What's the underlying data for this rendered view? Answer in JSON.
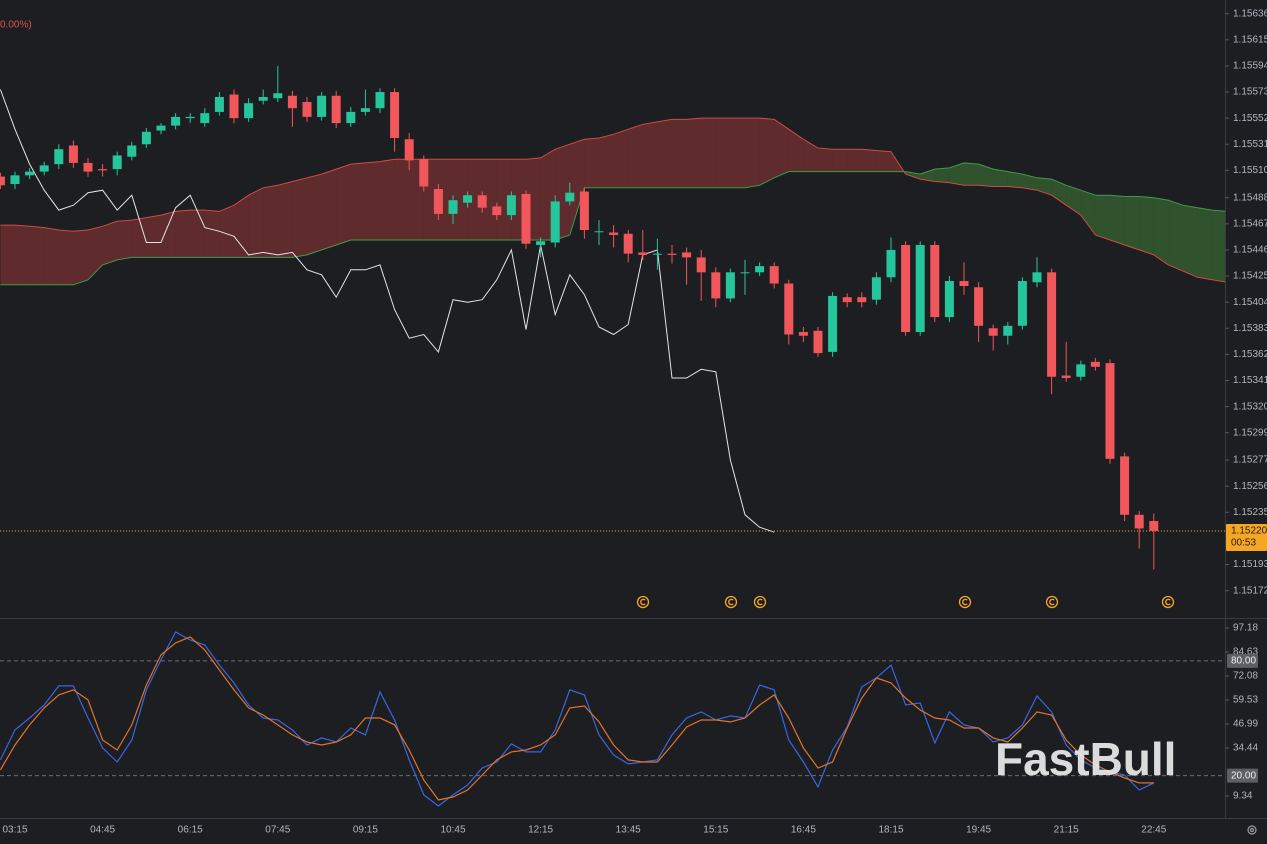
{
  "chart_data": [
    {
      "type": "candlestick",
      "annotation": "0.00%)",
      "watermark": "FastBull",
      "categories": [
        null,
        "03:15",
        null,
        null,
        null,
        null,
        null,
        "04:45",
        null,
        null,
        null,
        null,
        null,
        "06:15",
        null,
        null,
        null,
        null,
        null,
        "07:45",
        null,
        null,
        null,
        null,
        null,
        "09:15",
        null,
        null,
        null,
        null,
        null,
        "10:45",
        null,
        null,
        null,
        null,
        null,
        "12:15",
        null,
        null,
        null,
        null,
        null,
        "13:45",
        null,
        null,
        null,
        null,
        null,
        "15:15",
        null,
        null,
        null,
        null,
        null,
        "16:45",
        null,
        null,
        null,
        null,
        null,
        "18:15",
        null,
        null,
        null,
        null,
        null,
        "19:45",
        null,
        null,
        null,
        null,
        null,
        "21:15",
        null,
        null,
        null,
        null,
        null,
        "22:45",
        null,
        null,
        null,
        null,
        null
      ],
      "open": [
        1.15505,
        1.15499,
        1.15506,
        1.15509,
        1.15515,
        1.1553,
        1.15516,
        1.15511,
        1.15511,
        1.15521,
        1.15531,
        1.15542,
        1.15546,
        1.15552,
        1.15548,
        1.15557,
        1.15571,
        1.15552,
        1.15566,
        1.15568,
        1.1557,
        1.15565,
        1.15553,
        1.1557,
        1.15548,
        1.15557,
        1.1556,
        1.15573,
        1.15535,
        1.15519,
        1.15495,
        1.15475,
        1.15484,
        1.1549,
        1.15481,
        1.15474,
        1.15491,
        1.1545,
        1.15452,
        1.15485,
        1.15493,
        1.15461,
        1.1546,
        1.15459,
        1.15444,
        1.15443,
        1.15443,
        1.15444,
        1.1544,
        1.15428,
        1.15407,
        1.15428,
        1.15428,
        1.15433,
        1.15419,
        1.1538,
        1.15381,
        1.15364,
        1.15408,
        1.15408,
        1.15406,
        1.15424,
        1.1545,
        1.1538,
        1.1545,
        1.15392,
        1.15421,
        1.15416,
        1.15383,
        1.15377,
        1.15385,
        1.1542,
        1.15428,
        1.15345,
        1.15344,
        1.15356,
        1.15355,
        1.1528,
        1.15233,
        1.15228,
        null,
        null,
        null,
        null,
        null
      ],
      "high": [
        1.15508,
        1.15509,
        1.15512,
        1.15517,
        1.15531,
        1.15534,
        1.1552,
        1.15515,
        1.15525,
        1.15533,
        1.15544,
        1.15548,
        1.15556,
        1.15556,
        1.1556,
        1.15573,
        1.15575,
        1.15568,
        1.15575,
        1.15594,
        1.15574,
        1.15569,
        1.15573,
        1.15574,
        1.15561,
        1.15575,
        1.15576,
        1.15576,
        1.1554,
        1.15522,
        1.15499,
        1.1549,
        1.15493,
        1.15493,
        1.15484,
        1.15493,
        1.15494,
        1.15456,
        1.1549,
        1.155,
        1.15496,
        1.1547,
        1.15466,
        1.15462,
        1.15462,
        1.15455,
        1.1545,
        1.15448,
        1.15446,
        1.15432,
        1.15431,
        1.15438,
        1.15436,
        1.15436,
        1.15422,
        1.15384,
        1.15384,
        1.15412,
        1.15411,
        1.15412,
        1.15428,
        1.15456,
        1.15453,
        1.15453,
        1.15453,
        1.15425,
        1.15436,
        1.1542,
        1.15386,
        1.15388,
        1.15424,
        1.1544,
        1.15431,
        1.15372,
        1.15357,
        1.15359,
        1.15358,
        1.15283,
        1.15236,
        1.15234,
        null,
        null,
        null,
        null,
        null
      ],
      "low": [
        1.15495,
        1.15495,
        1.15503,
        1.15506,
        1.15511,
        1.15512,
        1.15505,
        1.15505,
        1.15506,
        1.15518,
        1.15528,
        1.15539,
        1.15543,
        1.15548,
        1.15545,
        1.15554,
        1.15548,
        1.15549,
        1.15563,
        1.15565,
        1.15545,
        1.15549,
        1.1555,
        1.15544,
        1.15545,
        1.15554,
        1.15556,
        1.15525,
        1.1551,
        1.15493,
        1.1547,
        1.15467,
        1.1548,
        1.15476,
        1.1547,
        1.1547,
        1.15447,
        1.1544,
        1.15448,
        1.15482,
        1.15455,
        1.1545,
        1.15448,
        1.15436,
        1.15438,
        1.1543,
        1.15435,
        1.15418,
        1.15405,
        1.154,
        1.15404,
        1.1541,
        1.15425,
        1.15415,
        1.1537,
        1.15372,
        1.1536,
        1.1536,
        1.154,
        1.154,
        1.15402,
        1.1542,
        1.15377,
        1.15377,
        1.15388,
        1.15388,
        1.1541,
        1.15372,
        1.15365,
        1.1537,
        1.15382,
        1.15416,
        1.1533,
        1.1534,
        1.15341,
        1.15349,
        1.15274,
        1.15228,
        1.15206,
        1.15189,
        null,
        null,
        null,
        null,
        null
      ],
      "close": [
        1.15498,
        1.15506,
        1.15509,
        1.15514,
        1.15527,
        1.15516,
        1.15509,
        1.1551,
        1.15522,
        1.1553,
        1.15541,
        1.15546,
        1.15553,
        1.15553,
        1.15556,
        1.15569,
        1.15552,
        1.15564,
        1.15569,
        1.15572,
        1.1556,
        1.15553,
        1.1557,
        1.15548,
        1.15557,
        1.1556,
        1.15573,
        1.15536,
        1.15518,
        1.15497,
        1.15475,
        1.15486,
        1.1549,
        1.1548,
        1.15474,
        1.1549,
        1.15451,
        1.15453,
        1.15485,
        1.15492,
        1.15462,
        1.15461,
        1.15458,
        1.15443,
        1.15442,
        1.15443,
        1.15442,
        1.1544,
        1.15428,
        1.15407,
        1.15428,
        1.15428,
        1.15433,
        1.15419,
        1.15378,
        1.15377,
        1.15363,
        1.15409,
        1.15404,
        1.15404,
        1.15424,
        1.15446,
        1.1538,
        1.1545,
        1.15392,
        1.15421,
        1.15417,
        1.15385,
        1.15377,
        1.15385,
        1.15421,
        1.15428,
        1.15344,
        1.15343,
        1.15354,
        1.15352,
        1.15278,
        1.15233,
        1.15222,
        1.1522,
        null,
        null,
        null,
        null,
        null
      ],
      "up_color": "#26c69c",
      "down_color": "#f0565a",
      "cloud": {
        "up_fill": "rgba(64,128,56,0.55)",
        "down_fill": "rgba(150,54,54,0.55)",
        "series": [
          {
            "color": "#3f9a48",
            "values": [
              1.15418,
              1.15418,
              1.15418,
              1.15418,
              1.15418,
              1.15418,
              1.15422,
              1.15434,
              1.15438,
              1.1544,
              1.1544,
              1.1544,
              1.1544,
              1.1544,
              1.1544,
              1.1544,
              1.1544,
              1.1544,
              1.1544,
              1.1544,
              1.1544,
              1.15442,
              1.15446,
              1.1545,
              1.15454,
              1.15454,
              1.15454,
              1.15454,
              1.15454,
              1.15454,
              1.15454,
              1.15454,
              1.15454,
              1.15454,
              1.15454,
              1.15454,
              1.15454,
              1.15454,
              1.15454,
              1.15458,
              1.15496,
              1.15496,
              1.15496,
              1.15496,
              1.15496,
              1.15496,
              1.15496,
              1.15496,
              1.15496,
              1.15496,
              1.15496,
              1.15496,
              1.15498,
              1.15504,
              1.15509,
              1.15509,
              1.15509,
              1.15509,
              1.15509,
              1.15509,
              1.15509,
              1.15509,
              1.15509,
              1.15507,
              1.15511,
              1.15512,
              1.15516,
              1.15515,
              1.15511,
              1.15509,
              1.15507,
              1.15504,
              1.15503,
              1.15498,
              1.15494,
              1.1549,
              1.1549,
              1.15489,
              1.15489,
              1.15488,
              1.15486,
              1.15482,
              1.1548,
              1.15478,
              1.15477
            ]
          },
          {
            "color": "#d04a44",
            "values": [
              1.15466,
              1.15466,
              1.15465,
              1.15464,
              1.15462,
              1.15461,
              1.15462,
              1.15465,
              1.15469,
              1.1547,
              1.15472,
              1.15474,
              1.15477,
              1.15478,
              1.15478,
              1.15477,
              1.15482,
              1.1549,
              1.15496,
              1.15498,
              1.15501,
              1.15504,
              1.15507,
              1.15511,
              1.15515,
              1.15516,
              1.15517,
              1.15519,
              1.15519,
              1.15519,
              1.15519,
              1.15519,
              1.15519,
              1.15519,
              1.15519,
              1.15519,
              1.15519,
              1.1552,
              1.15527,
              1.15531,
              1.15535,
              1.15536,
              1.15539,
              1.15543,
              1.15547,
              1.15549,
              1.15551,
              1.15551,
              1.15552,
              1.15552,
              1.15552,
              1.15552,
              1.15552,
              1.15551,
              1.15543,
              1.15535,
              1.15528,
              1.15527,
              1.15527,
              1.15527,
              1.15526,
              1.15525,
              1.15507,
              1.15503,
              1.15501,
              1.155,
              1.15498,
              1.15498,
              1.15497,
              1.15497,
              1.15496,
              1.15494,
              1.1549,
              1.15482,
              1.15474,
              1.15458,
              1.15454,
              1.1545,
              1.15446,
              1.15442,
              1.15434,
              1.15429,
              1.15424,
              1.15422,
              1.1542
            ]
          }
        ]
      },
      "lines": [
        {
          "color": "#e4e4e4",
          "values": [
            1.15575,
            1.15543,
            1.15515,
            1.15494,
            1.15478,
            1.15482,
            1.15492,
            1.15494,
            1.15478,
            1.1549,
            1.15452,
            1.15452,
            1.1548,
            1.1549,
            1.15464,
            1.15461,
            1.15457,
            1.15442,
            1.15444,
            1.15442,
            1.15444,
            1.1543,
            1.15426,
            1.15408,
            1.1543,
            1.1543,
            1.15434,
            1.15398,
            1.15375,
            1.15378,
            1.15364,
            1.15406,
            1.15404,
            1.15406,
            1.15422,
            1.15446,
            1.15382,
            1.1545,
            1.15394,
            1.15426,
            1.1541,
            1.15384,
            1.15378,
            1.15386,
            1.15442,
            1.15446,
            1.15343,
            1.15343,
            1.1535,
            1.15348,
            1.15277,
            1.15233,
            1.15223,
            1.15219,
            null,
            null,
            null,
            null,
            null,
            null,
            null,
            null,
            null,
            null,
            null,
            null,
            null,
            null,
            null,
            null,
            null,
            null,
            null,
            null,
            null,
            null,
            null,
            null,
            null,
            null,
            null,
            null,
            null,
            null,
            null
          ]
        }
      ],
      "current_price": {
        "value": 1.1522,
        "label": "1.15220"
      },
      "countdown": "00:53",
      "price_color": "#f5a623",
      "ylim": [
        1.1515,
        1.15647
      ],
      "yticks": [
        1.15636,
        1.15615,
        1.15594,
        1.15573,
        1.15552,
        1.15531,
        {
          "value": 1.1551,
          "label": "1.15510"
        },
        1.15488,
        1.15467,
        1.15446,
        1.15425,
        1.15404,
        1.15383,
        1.15362,
        1.15341,
        {
          "value": 1.1532,
          "label": "1.15320"
        },
        1.15299,
        1.15277,
        1.15256,
        1.15235,
        1.15193,
        1.15172
      ]
    },
    {
      "type": "line",
      "series": [
        {
          "color": "#3a66e0",
          "values": [
            28.2,
            43.9,
            50.1,
            56.9,
            66.9,
            66.9,
            50.1,
            34.5,
            27.1,
            38.6,
            64.8,
            80.5,
            95.1,
            90.9,
            88.3,
            77.8,
            68.4,
            56.9,
            50.1,
            49.1,
            43.9,
            36.0,
            39.7,
            37.6,
            44.9,
            41.3,
            63.7,
            49.1,
            28.2,
            9.9,
            4.1,
            9.9,
            15.1,
            24.0,
            27.1,
            36.6,
            32.4,
            32.4,
            43.9,
            64.8,
            62.2,
            41.3,
            30.8,
            26.1,
            27.1,
            28.2,
            41.3,
            50.1,
            53.3,
            49.1,
            51.2,
            50.1,
            67.4,
            64.8,
            38.6,
            27.1,
            14.1,
            33.4,
            45.4,
            66.4,
            71.1,
            77.8,
            56.9,
            58.0,
            37.1,
            53.3,
            46.5,
            44.9,
            37.6,
            39.7,
            46.5,
            61.6,
            53.3,
            36.0,
            28.2,
            24.0,
            21.9,
            20.3,
            12.5,
            16.2,
            null,
            null,
            null,
            null,
            null
          ]
        },
        {
          "color": "#e2732a",
          "values": [
            23.0,
            36.0,
            46.5,
            55.4,
            62.2,
            64.8,
            59.6,
            38.6,
            33.4,
            46.5,
            67.4,
            83.1,
            89.4,
            92.5,
            85.7,
            75.2,
            64.8,
            55.4,
            51.7,
            46.5,
            41.3,
            37.6,
            36.0,
            37.6,
            41.3,
            50.1,
            50.1,
            46.5,
            33.4,
            17.7,
            7.3,
            8.8,
            12.5,
            20.3,
            28.2,
            32.4,
            33.4,
            36.0,
            41.3,
            55.4,
            56.4,
            48.1,
            36.0,
            28.2,
            27.1,
            27.1,
            36.0,
            45.4,
            49.1,
            49.1,
            48.1,
            50.1,
            56.9,
            62.2,
            50.1,
            34.5,
            24.0,
            27.1,
            44.9,
            60.6,
            71.1,
            68.4,
            60.6,
            54.3,
            50.1,
            49.1,
            44.9,
            44.9,
            39.7,
            37.6,
            44.9,
            53.3,
            51.7,
            38.6,
            30.8,
            25.6,
            21.9,
            18.8,
            16.2,
            16.2,
            null,
            null,
            null,
            null,
            null
          ]
        }
      ],
      "levels": [
        {
          "value": 80,
          "label": "80.00"
        },
        {
          "value": 20,
          "label": "20.00"
        }
      ],
      "ylim": [
        -2.16,
        101.36
      ],
      "yticks": [
        97.18,
        84.63,
        72.08,
        59.53,
        46.99,
        34.44,
        9.34
      ]
    }
  ]
}
